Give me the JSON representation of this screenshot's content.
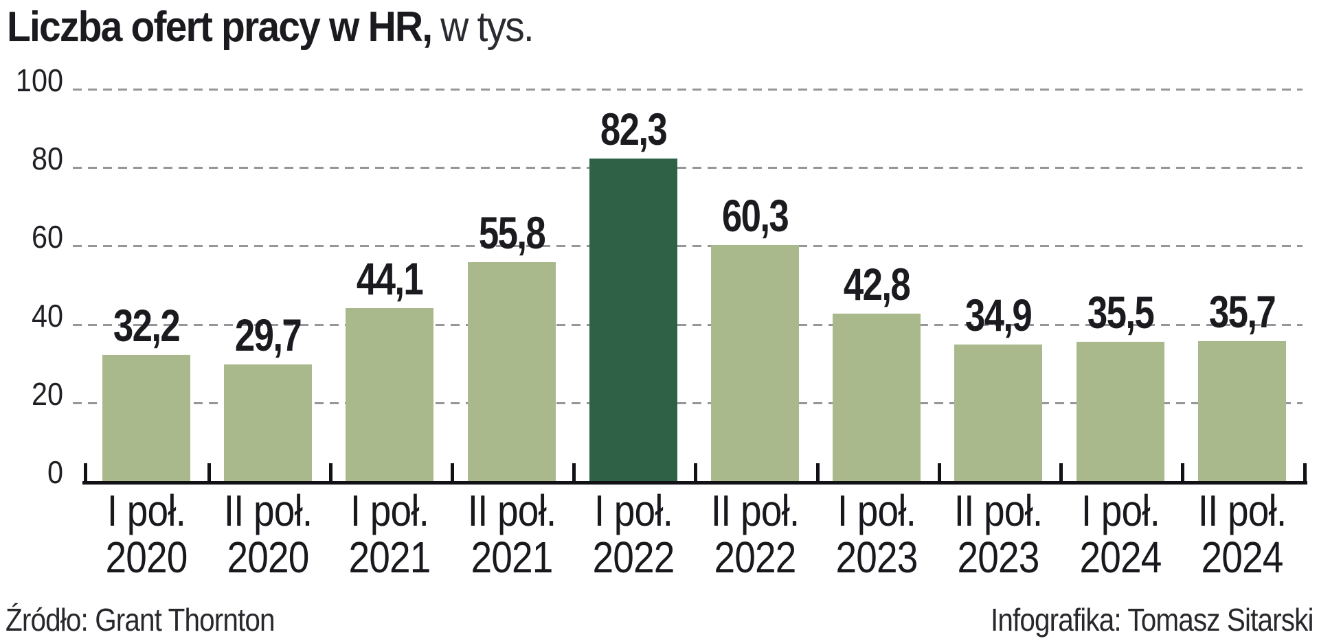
{
  "title": {
    "bold": "Liczba ofert pracy w HR,",
    "light": "w tys."
  },
  "footer": {
    "source": "Źródło: Grant Thornton",
    "credit": "Infografika: Tomasz Sitarski"
  },
  "chart_data": {
    "type": "bar",
    "title": "Liczba ofert pracy w HR, w tys.",
    "unit": "tys.",
    "categories": [
      {
        "period": "I poł.",
        "year": "2020"
      },
      {
        "period": "II poł.",
        "year": "2020"
      },
      {
        "period": "I poł.",
        "year": "2021"
      },
      {
        "period": "II poł.",
        "year": "2021"
      },
      {
        "period": "I poł.",
        "year": "2022"
      },
      {
        "period": "II poł.",
        "year": "2022"
      },
      {
        "period": "I poł.",
        "year": "2023"
      },
      {
        "period": "II poł.",
        "year": "2023"
      },
      {
        "period": "I poł.",
        "year": "2024"
      },
      {
        "period": "II poł.",
        "year": "2024"
      }
    ],
    "values": [
      32.2,
      29.7,
      44.1,
      55.8,
      82.3,
      60.3,
      42.8,
      34.9,
      35.5,
      35.7
    ],
    "value_labels": [
      "32,2",
      "29,7",
      "44,1",
      "55,8",
      "82,3",
      "60,3",
      "42,8",
      "34,9",
      "35,5",
      "35,7"
    ],
    "highlight_index": 4,
    "yticks": [
      0,
      20,
      40,
      60,
      80,
      100
    ],
    "ylim": [
      0,
      100
    ],
    "grid": "dashed-horizontal",
    "legend": "none",
    "colors": {
      "bar": "#a9b98b",
      "highlight": "#2f6147",
      "grid": "#96969a",
      "axis": "#111116",
      "text": "#1a1a1f"
    }
  }
}
